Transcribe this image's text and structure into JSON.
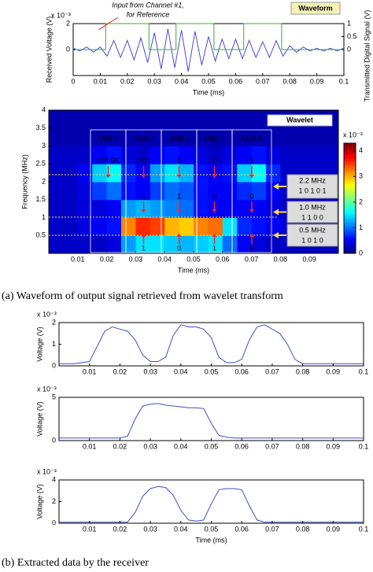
{
  "chart_data": [
    {
      "type": "line",
      "label": "Waveform",
      "annotations": [
        "Input from Channel #1,",
        "for Reference"
      ],
      "ylabel": "Received Voltage (V)",
      "y2label": "Transmitted Digital Signal (V)",
      "xlabel": "Time (ms)",
      "scale_label": "x 10⁻³",
      "xlim": [
        0,
        0.1
      ],
      "xticks": [
        0,
        0.01,
        0.02,
        0.03,
        0.04,
        0.05,
        0.06,
        0.07,
        0.08,
        0.09,
        0.1
      ],
      "ylim": [
        -2,
        2
      ],
      "yticks": [
        0,
        2
      ],
      "y2lim": [
        -1,
        1
      ],
      "y2ticks": [
        0,
        0.5,
        1
      ],
      "series": [
        {
          "color": "#4a4ad8",
          "x": [
            0,
            0.0025,
            0.005,
            0.0075,
            0.01,
            0.0125,
            0.015,
            0.0175,
            0.02,
            0.0225,
            0.025,
            0.0275,
            0.03,
            0.0325,
            0.035,
            0.0375,
            0.04,
            0.0425,
            0.045,
            0.0475,
            0.05,
            0.0525,
            0.055,
            0.0575,
            0.06,
            0.0625,
            0.065,
            0.0675,
            0.07,
            0.0725,
            0.075,
            0.0775,
            0.08,
            0.0825,
            0.085,
            0.0875,
            0.09,
            0.0925,
            0.095,
            0.0975,
            0.1
          ],
          "values": [
            0.1,
            -0.1,
            0.2,
            -0.2,
            0.2,
            -0.5,
            0.7,
            -0.6,
            0.7,
            -0.8,
            0.9,
            -1.0,
            1.3,
            -1.5,
            1.6,
            -1.4,
            1.5,
            -1.7,
            1.4,
            -1.2,
            1.0,
            -0.9,
            0.8,
            -0.7,
            0.8,
            -0.7,
            0.7,
            -0.6,
            0.6,
            -0.6,
            0.7,
            -0.5,
            0.3,
            -0.2,
            0.2,
            -0.1,
            0.1,
            -0.1,
            0.1,
            -0.1,
            0.1
          ]
        },
        {
          "color": "#3aa83a",
          "axis": "y2",
          "x": [
            0,
            0.012,
            0.012,
            0.028,
            0.028,
            0.038,
            0.038,
            0.052,
            0.052,
            0.063,
            0.063,
            0.077,
            0.077,
            0.1
          ],
          "values": [
            0,
            0,
            1,
            1,
            0,
            0,
            1,
            1,
            0,
            0,
            1,
            1,
            0,
            0
          ]
        }
      ]
    },
    {
      "type": "heatmap",
      "label": "Wavelet",
      "xlabel": "Time (ms)",
      "ylabel": "Frequency (MHz)",
      "scale_label": "x 10⁻³",
      "xlim": [
        0,
        0.1
      ],
      "xticks": [
        0.01,
        0.02,
        0.03,
        0.04,
        0.05,
        0.06,
        0.07,
        0.08,
        0.09
      ],
      "ylim": [
        0,
        4
      ],
      "yticks": [
        0.5,
        1,
        1.5,
        2,
        2.5,
        3,
        3.5,
        4
      ],
      "clim": [
        0,
        4.3
      ],
      "cticks": [
        0,
        1,
        2,
        3,
        4
      ],
      "xbins": [
        0,
        0.005,
        0.01,
        0.015,
        0.02,
        0.025,
        0.03,
        0.035,
        0.04,
        0.045,
        0.05,
        0.055,
        0.06,
        0.065,
        0.07,
        0.075,
        0.08,
        0.085,
        0.09,
        0.095,
        0.1
      ],
      "ybins": [
        0,
        0.5,
        1,
        1.5,
        2,
        2.5,
        3,
        3.5,
        4
      ],
      "values": [
        [
          0.3,
          0.3,
          0.3,
          0.3,
          0.4,
          1.2,
          1.5,
          1.5,
          1.4,
          1.3,
          1.4,
          1.5,
          1.0,
          0.5,
          0.4,
          0.3,
          0.3,
          0.3,
          0.3,
          0.3
        ],
        [
          0.3,
          0.3,
          0.4,
          0.5,
          0.6,
          3.2,
          3.6,
          3.5,
          3.0,
          2.9,
          3.2,
          3.3,
          1.5,
          0.7,
          0.6,
          0.5,
          0.4,
          0.3,
          0.3,
          0.3
        ],
        [
          0.3,
          0.3,
          0.4,
          0.4,
          0.5,
          1.2,
          1.3,
          1.2,
          1.1,
          1.0,
          0.6,
          0.5,
          0.5,
          0.5,
          0.5,
          0.4,
          0.3,
          0.3,
          0.3,
          0.3
        ],
        [
          0.3,
          0.3,
          0.4,
          0.8,
          1.0,
          0.6,
          0.5,
          0.8,
          1.0,
          0.9,
          0.6,
          0.5,
          0.5,
          0.7,
          0.8,
          0.5,
          0.3,
          0.3,
          0.3,
          0.3
        ],
        [
          0.3,
          0.3,
          0.5,
          1.4,
          1.6,
          0.7,
          0.5,
          1.2,
          1.5,
          1.3,
          0.6,
          0.5,
          0.6,
          1.4,
          1.6,
          0.7,
          0.3,
          0.3,
          0.3,
          0.3
        ],
        [
          0.3,
          0.3,
          0.3,
          0.5,
          0.6,
          0.4,
          0.3,
          0.5,
          0.6,
          0.5,
          0.4,
          0.3,
          0.4,
          0.5,
          0.6,
          0.4,
          0.3,
          0.3,
          0.3,
          0.3
        ],
        [
          0.2,
          0.2,
          0.2,
          0.2,
          0.2,
          0.2,
          0.2,
          0.2,
          0.2,
          0.2,
          0.2,
          0.2,
          0.2,
          0.2,
          0.2,
          0.2,
          0.2,
          0.2,
          0.2,
          0.2
        ],
        [
          0.2,
          0.2,
          0.2,
          0.2,
          0.2,
          0.2,
          0.2,
          0.2,
          0.2,
          0.2,
          0.2,
          0.2,
          0.2,
          0.2,
          0.2,
          0.2,
          0.2,
          0.2,
          0.2,
          0.2
        ]
      ],
      "digits": [
        "Digit 0",
        "Digit 1",
        "Digit 2",
        "Digit 3",
        "Digit 4"
      ],
      "bits_high": [
        "Ctrl.Bit",
        "0",
        "1",
        "0",
        "1"
      ],
      "bits_mid": [
        "1",
        "1",
        "0",
        "0"
      ],
      "bits_low": [
        "1",
        "0",
        "1",
        "0"
      ],
      "bands": [
        {
          "label": "2.2 MHz",
          "bits": "1 0 1 0 1"
        },
        {
          "label": "1.0 MHz",
          "bits": "1 1 0 0"
        },
        {
          "label": "0.5 MHz",
          "bits": "1 0 1 0"
        }
      ]
    },
    {
      "type": "line",
      "ylabel": "Voltage (V)",
      "scale_label": "x 10⁻³",
      "color": "#3a50c8",
      "xlim": [
        0,
        0.1
      ],
      "xticks": [
        0.01,
        0.02,
        0.03,
        0.04,
        0.05,
        0.06,
        0.07,
        0.08,
        0.09,
        0.1
      ],
      "ylim": [
        0,
        2
      ],
      "yticks": [
        0,
        1,
        2
      ],
      "x": [
        0,
        0.0025,
        0.005,
        0.0075,
        0.01,
        0.0125,
        0.015,
        0.0175,
        0.02,
        0.0225,
        0.025,
        0.0275,
        0.03,
        0.0325,
        0.035,
        0.0375,
        0.04,
        0.0425,
        0.045,
        0.0475,
        0.05,
        0.0525,
        0.055,
        0.0575,
        0.06,
        0.0625,
        0.065,
        0.0675,
        0.07,
        0.0725,
        0.075,
        0.0775,
        0.08,
        0.0825,
        0.085,
        0.0875,
        0.09,
        0.0925,
        0.095,
        0.0975,
        0.1
      ],
      "values": [
        0.1,
        0.1,
        0.1,
        0.15,
        0.2,
        0.9,
        1.6,
        1.8,
        1.7,
        1.6,
        1.2,
        0.5,
        0.2,
        0.2,
        0.4,
        1.4,
        1.9,
        1.8,
        1.8,
        1.7,
        1.3,
        0.4,
        0.15,
        0.15,
        0.3,
        1.2,
        1.8,
        1.9,
        1.7,
        1.5,
        1.0,
        0.3,
        0.1,
        0.1,
        0.1,
        0.1,
        0.1,
        0.1,
        0.1,
        0.1,
        0.1
      ]
    },
    {
      "type": "line",
      "ylabel": "Voltage (V)",
      "scale_label": "x 10⁻³",
      "color": "#3a50c8",
      "xlim": [
        0,
        0.1
      ],
      "xticks": [
        0.01,
        0.02,
        0.03,
        0.04,
        0.05,
        0.06,
        0.07,
        0.08,
        0.09,
        0.1
      ],
      "ylim": [
        0,
        5
      ],
      "yticks": [
        0,
        5
      ],
      "x": [
        0,
        0.0025,
        0.005,
        0.0075,
        0.01,
        0.0125,
        0.015,
        0.0175,
        0.02,
        0.0225,
        0.025,
        0.0275,
        0.03,
        0.0325,
        0.035,
        0.0375,
        0.04,
        0.0425,
        0.045,
        0.0475,
        0.05,
        0.0525,
        0.055,
        0.0575,
        0.06,
        0.0625,
        0.065,
        0.0675,
        0.07,
        0.0725,
        0.075,
        0.0775,
        0.08,
        0.0825,
        0.085,
        0.0875,
        0.09,
        0.0925,
        0.095,
        0.0975,
        0.1
      ],
      "values": [
        0.3,
        0.3,
        0.3,
        0.3,
        0.3,
        0.3,
        0.3,
        0.3,
        0.3,
        0.5,
        2.5,
        4.0,
        4.2,
        4.3,
        4.1,
        4.0,
        3.9,
        3.8,
        3.8,
        3.7,
        2.0,
        0.6,
        0.4,
        0.3,
        0.3,
        0.3,
        0.3,
        0.3,
        0.3,
        0.3,
        0.3,
        0.3,
        0.3,
        0.3,
        0.3,
        0.3,
        0.3,
        0.3,
        0.3,
        0.3,
        0.3
      ]
    },
    {
      "type": "line",
      "ylabel": "Voltage (V)",
      "xlabel": "Time (ms)",
      "scale_label": "x 10⁻³",
      "color": "#3a50c8",
      "xlim": [
        0,
        0.1
      ],
      "xticks": [
        0.01,
        0.02,
        0.03,
        0.04,
        0.05,
        0.06,
        0.07,
        0.08,
        0.09,
        0.1
      ],
      "ylim": [
        0,
        4
      ],
      "yticks": [
        0,
        2,
        4
      ],
      "x": [
        0,
        0.0025,
        0.005,
        0.0075,
        0.01,
        0.0125,
        0.015,
        0.0175,
        0.02,
        0.0225,
        0.025,
        0.0275,
        0.03,
        0.0325,
        0.035,
        0.0375,
        0.04,
        0.0425,
        0.045,
        0.0475,
        0.05,
        0.0525,
        0.055,
        0.0575,
        0.06,
        0.0625,
        0.065,
        0.0675,
        0.07,
        0.0725,
        0.075,
        0.0775,
        0.08,
        0.0825,
        0.085,
        0.0875,
        0.09,
        0.0925,
        0.095,
        0.0975,
        0.1
      ],
      "values": [
        0.1,
        0.1,
        0.1,
        0.1,
        0.1,
        0.1,
        0.1,
        0.1,
        0.1,
        0.1,
        1.0,
        2.5,
        3.2,
        3.4,
        3.3,
        2.6,
        1.2,
        0.3,
        0.2,
        0.3,
        1.8,
        3.1,
        3.2,
        3.2,
        3.1,
        1.6,
        0.3,
        0.1,
        0.1,
        0.1,
        0.1,
        0.1,
        0.1,
        0.1,
        0.1,
        0.1,
        0.1,
        0.1,
        0.1,
        0.1,
        0.1
      ]
    }
  ],
  "captions": [
    "(a) Waveform of output signal retrieved from wavelet transform",
    "(b) Extracted data by the receiver"
  ]
}
